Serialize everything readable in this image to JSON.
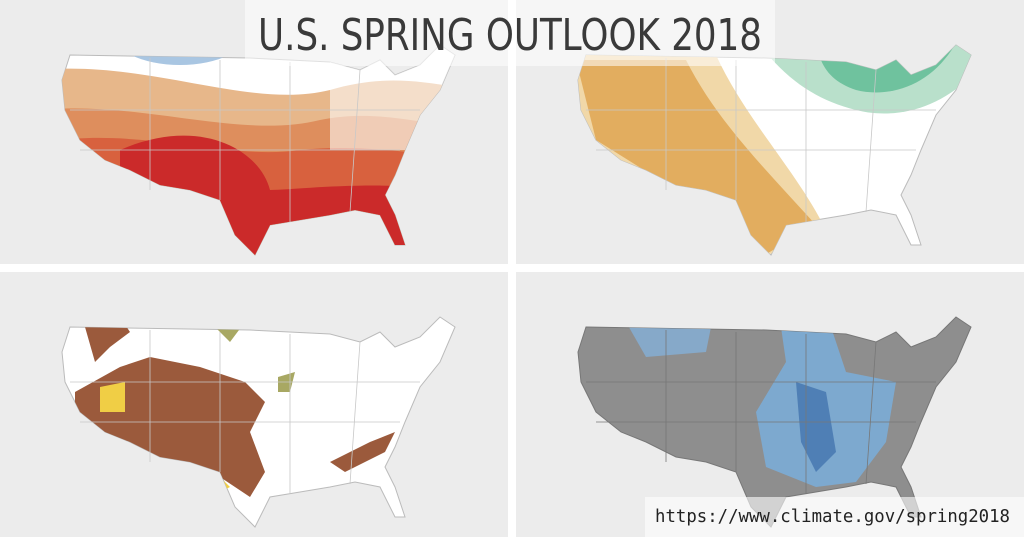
{
  "title": "U.S. SPRING OUTLOOK 2018",
  "url": "https://www.climate.gov/spring2018"
}
